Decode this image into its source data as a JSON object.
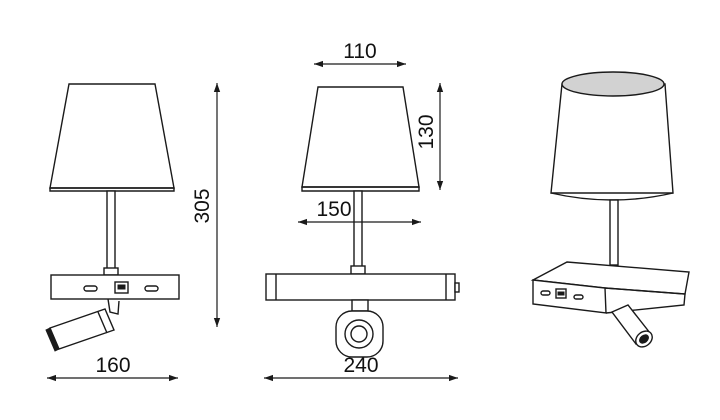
{
  "dimensions": {
    "width_shade_top": "110",
    "height_shade": "130",
    "width_base_depth": "150",
    "height_total": "305",
    "width_front": "160",
    "width_side": "240"
  },
  "colors": {
    "line": "#1a1a1a",
    "shade_fill": "#d2d2d2",
    "background": "#ffffff"
  }
}
